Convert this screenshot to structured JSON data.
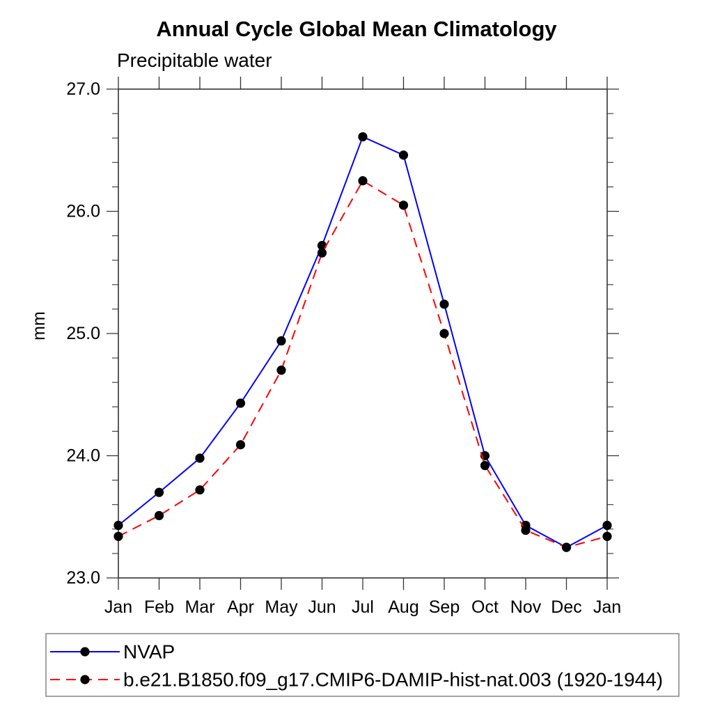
{
  "chart_data": {
    "type": "line",
    "title": "Annual Cycle Global Mean Climatology",
    "subtitle": "Precipitable water",
    "ylabel": "mm",
    "xlabel": "",
    "categories": [
      "Jan",
      "Feb",
      "Mar",
      "Apr",
      "May",
      "Jun",
      "Jul",
      "Aug",
      "Sep",
      "Oct",
      "Nov",
      "Dec",
      "Jan"
    ],
    "ylim": [
      23.0,
      27.0
    ],
    "yticks": [
      23.0,
      24.0,
      25.0,
      26.0,
      27.0
    ],
    "ytick_labels": [
      "23.0",
      "24.0",
      "25.0",
      "26.0",
      "27.0"
    ],
    "minor_tick_interval": 0.2,
    "grid": false,
    "legend_position": "bottom",
    "frame_color": "#333333",
    "marker_color": "#000000",
    "series": [
      {
        "name": "NVAP",
        "color": "#0000ff",
        "style": "solid",
        "marker": "circle",
        "values": [
          23.43,
          23.7,
          23.98,
          24.43,
          24.94,
          25.72,
          26.61,
          26.46,
          25.24,
          24.0,
          23.43,
          23.25,
          23.43
        ]
      },
      {
        "name": "b.e21.B1850.f09_g17.CMIP6-DAMIP-hist-nat.003 (1920-1944)",
        "color": "#ff0000",
        "style": "dashed",
        "marker": "circle",
        "values": [
          23.34,
          23.51,
          23.72,
          24.09,
          24.7,
          25.66,
          26.25,
          26.05,
          25.0,
          23.92,
          23.39,
          23.25,
          23.34
        ]
      }
    ]
  }
}
